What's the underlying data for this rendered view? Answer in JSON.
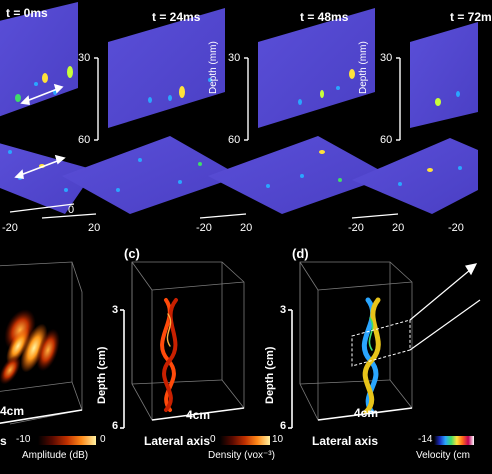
{
  "top_row": {
    "time_labels": [
      "t = 0ms",
      "t = 24ms",
      "t = 48ms",
      "t = 72m"
    ],
    "depth_axis": {
      "label": "Depth (mm)",
      "ticks": [
        "30",
        "60"
      ]
    },
    "lateral_ticks": [
      "0",
      "-20",
      "20",
      "-20",
      "20",
      "-20",
      "20",
      "-20"
    ]
  },
  "bottom_row": {
    "panel_labels": [
      "(c)",
      "(d)"
    ],
    "scale_labels": [
      "4cm",
      "4cm",
      "4cm"
    ],
    "depth_axis": {
      "label": "Depth (cm)",
      "ticks": [
        "3",
        "6"
      ]
    },
    "lateral_axis_label": "Lateral axis",
    "partial_label": "s",
    "colorbars": [
      {
        "min": "-10",
        "max": "0",
        "label": "Amplitude (dB)",
        "colors": [
          "#000000",
          "#5a0a00",
          "#c03000",
          "#ff8a1a",
          "#fff0a0"
        ]
      },
      {
        "min": "0",
        "max": "10",
        "label": "Density (vox⁻³)",
        "colors": [
          "#000000",
          "#5a0a00",
          "#c03000",
          "#ff8a1a",
          "#fff0a0"
        ]
      },
      {
        "min": "-14",
        "label": "Velocity (cm",
        "colors": [
          "#000000",
          "#1a2bbf",
          "#2aa6ff",
          "#3fdc6a",
          "#ffe23a",
          "#ff6a1a",
          "#c0005a",
          "#ffffff"
        ]
      }
    ]
  }
}
